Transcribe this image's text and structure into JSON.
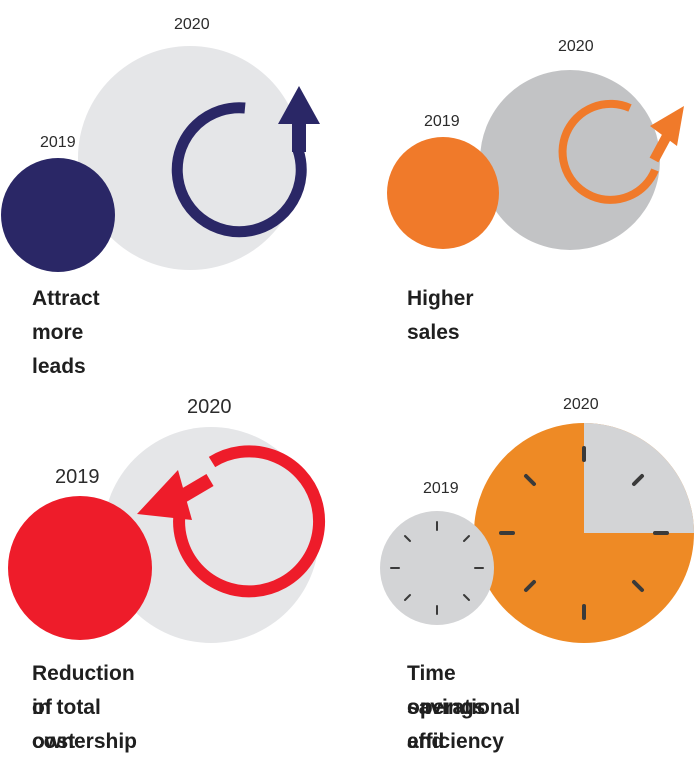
{
  "colors": {
    "navy": "#2a2766",
    "orange": "#f07a2a",
    "red": "#ee1c2a",
    "light_grey": "#e5e6e8",
    "mid_grey": "#c2c3c5",
    "clock_orange": "#ee8a25",
    "clock_grey": "#d3d4d6",
    "tick": "#3a3a3a"
  },
  "panels": [
    {
      "id": "leads",
      "year_small": "2019",
      "year_large": "2020",
      "caption": "Attract more leads",
      "icon": "cycle-arrow-up-icon"
    },
    {
      "id": "sales",
      "year_small": "2019",
      "year_large": "2020",
      "caption": "Higher sales",
      "icon": "cycle-arrow-diagonal-icon"
    },
    {
      "id": "cost",
      "year_small": "2019",
      "year_large": "2020",
      "caption_line1": "Reduction in total cost",
      "caption_line2": "of ownership",
      "icon": "cycle-arrow-left-icon"
    },
    {
      "id": "time",
      "year_small": "2019",
      "year_large": "2020",
      "caption_line1": "Time savings and",
      "caption_line2": "operational efficiency",
      "icon": "clock-icon"
    }
  ]
}
